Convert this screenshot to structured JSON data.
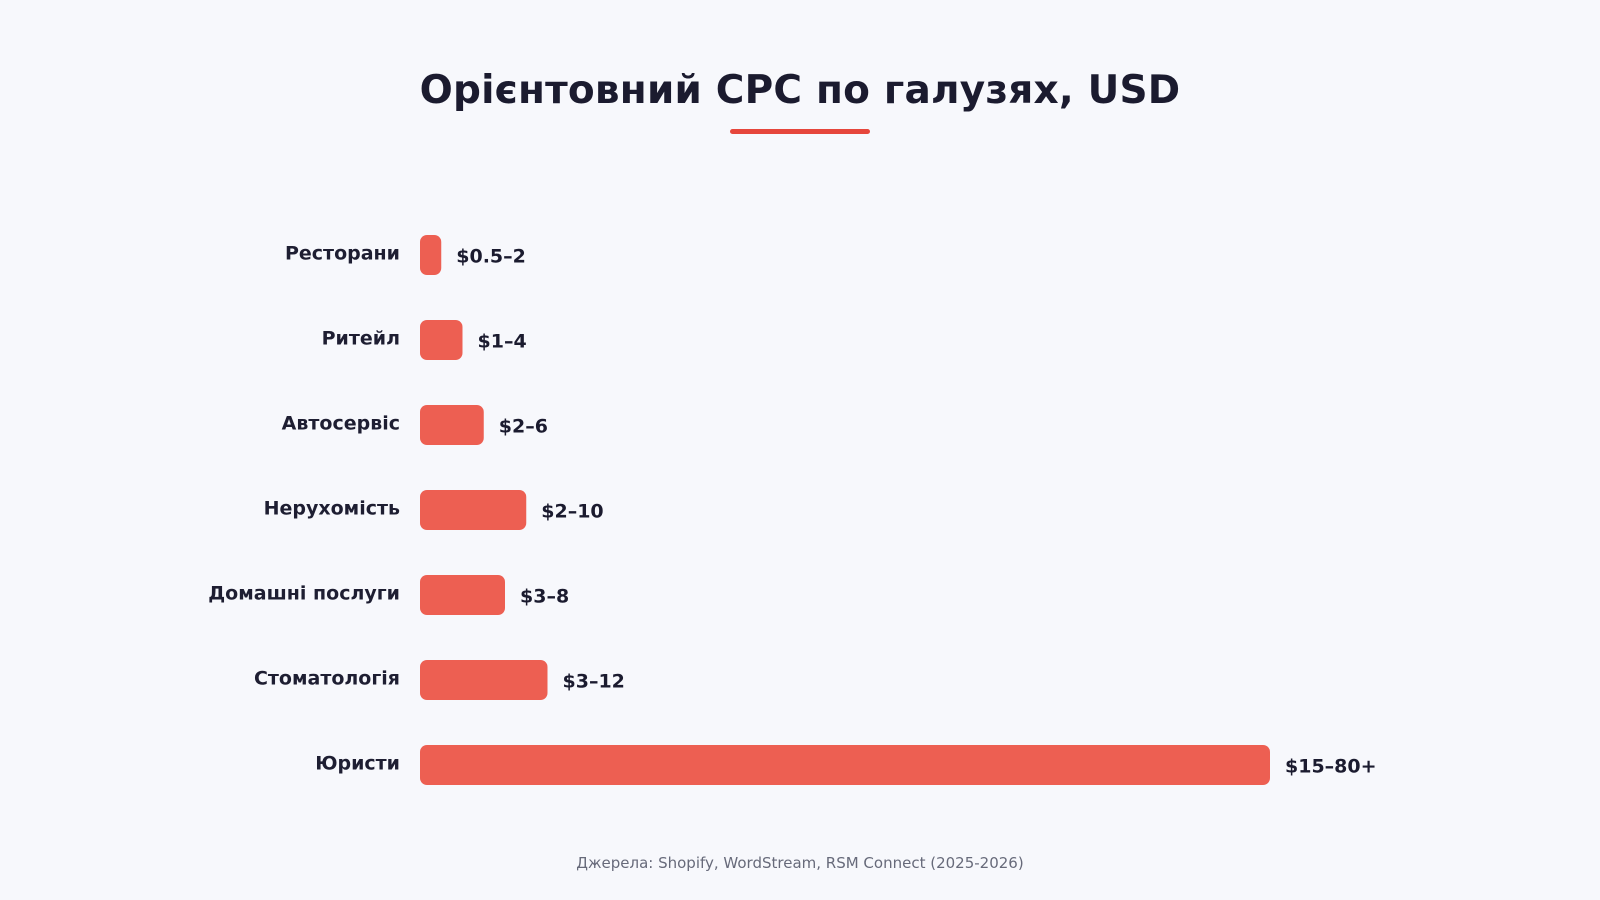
{
  "title": "Орієнтовний CPC по галузях, USD",
  "source": "Джерела: Shopify, WordStream, RSM Connect (2025-2026)",
  "colors": {
    "bar": "#ed5f52",
    "accent": "#e6463c",
    "background": "#f7f8fc",
    "text": "#1b1b2f"
  },
  "chart_data": {
    "type": "bar",
    "orientation": "horizontal",
    "title": "Орієнтовний CPC по галузях, USD",
    "xlabel": "",
    "ylabel": "",
    "grid": false,
    "xlim": [
      0,
      80
    ],
    "categories": [
      "Ресторани",
      "Ритейл",
      "Автосервіс",
      "Нерухомість",
      "Домашні послуги",
      "Стоматологія",
      "Юристи"
    ],
    "values": [
      2,
      4,
      6,
      10,
      8,
      12,
      80
    ],
    "ranges": [
      [
        0.5,
        2
      ],
      [
        1,
        4
      ],
      [
        2,
        6
      ],
      [
        2,
        10
      ],
      [
        3,
        8
      ],
      [
        3,
        12
      ],
      [
        15,
        80
      ]
    ],
    "data_labels": [
      "$0.5–2",
      "$1–4",
      "$2–6",
      "$2–10",
      "$3–8",
      "$3–12",
      "$15–80+"
    ]
  }
}
